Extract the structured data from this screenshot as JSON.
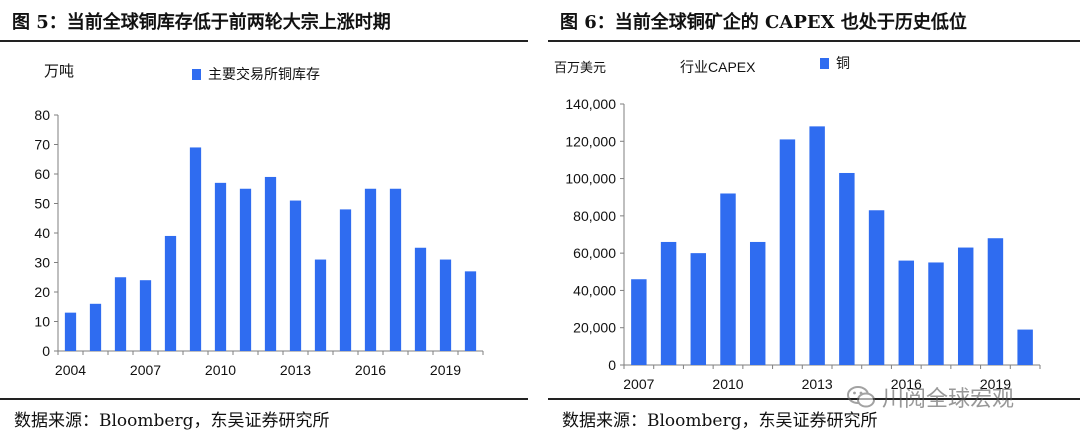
{
  "left": {
    "title": "图 5：当前全球铜库存低于前两轮大宗上涨时期",
    "source": "数据来源：Bloomberg，东吴证券研究所"
  },
  "right": {
    "title": "图 6：当前全球铜矿企的 CAPEX 也处于历史低位",
    "source": "数据来源：Bloomberg，东吴证券研究所"
  },
  "watermark": {
    "text": "川阅全球宏观",
    "icon": "wechat-icon"
  },
  "colors": {
    "bar": "#2f6cf0",
    "axis": "#7f7f7f",
    "rule": "#222222"
  },
  "chart_data": [
    {
      "type": "bar",
      "unit_label": "万吨",
      "legend": "主要交易所铜库存",
      "x": [
        2004,
        2005,
        2006,
        2007,
        2008,
        2009,
        2010,
        2011,
        2012,
        2013,
        2014,
        2015,
        2016,
        2017,
        2018,
        2019,
        2020
      ],
      "values": [
        13,
        16,
        25,
        24,
        39,
        69,
        57,
        55,
        59,
        51,
        31,
        48,
        55,
        55,
        35,
        31,
        27
      ],
      "x_tick_labels": [
        "2004",
        "2007",
        "2010",
        "2013",
        "2016",
        "2019"
      ],
      "y_ticks": [
        0,
        10,
        20,
        30,
        40,
        50,
        60,
        70,
        80
      ],
      "ylim": [
        0,
        80
      ]
    },
    {
      "type": "bar",
      "unit_label": "百万美元",
      "subtitle": "行业CAPEX",
      "legend": "铜",
      "x": [
        2007,
        2008,
        2009,
        2010,
        2011,
        2012,
        2013,
        2014,
        2015,
        2016,
        2017,
        2018,
        2019,
        2020
      ],
      "values": [
        46000,
        66000,
        60000,
        92000,
        66000,
        121000,
        128000,
        103000,
        83000,
        56000,
        55000,
        63000,
        68000,
        19000
      ],
      "x_tick_labels": [
        "2007",
        "2010",
        "2013",
        "2016",
        "2019"
      ],
      "y_ticks": [
        "0",
        "20,000",
        "40,000",
        "60,000",
        "80,000",
        "100,000",
        "120,000",
        "140,000"
      ],
      "ylim": [
        0,
        140000
      ]
    }
  ]
}
